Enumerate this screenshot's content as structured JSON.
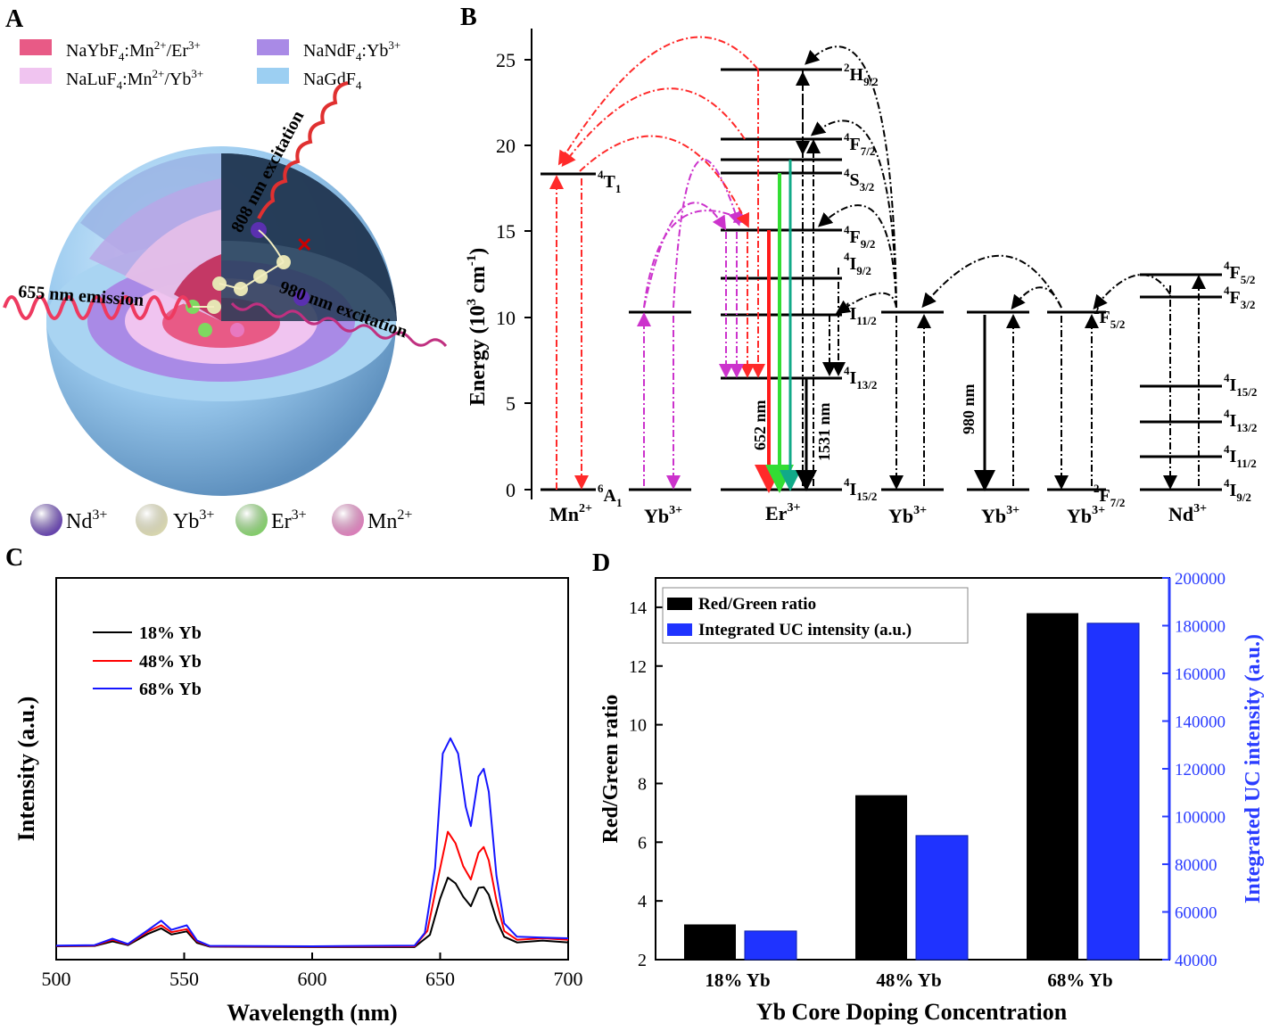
{
  "colors": {
    "shell_outer": "#8fc8ec",
    "shell_ndf": "#a88de0",
    "shell_lu": "#e8b8e8",
    "core": "#e8507a",
    "red": "#ff1a1a",
    "green": "#33dd33",
    "teal": "#11aa88",
    "magenta": "#cc33cc",
    "blue": "#3333ff"
  },
  "panel_a": {
    "letter": "A",
    "legend": [
      {
        "formula": "NaYbF",
        "sub": "4",
        "rest": ":Mn",
        "sup1": "2+",
        "mid": "/Er",
        "sup2": "3+",
        "color": "#e85a86"
      },
      {
        "formula": "NaLuF",
        "sub": "4",
        "rest": ":Mn",
        "sup1": "2+",
        "mid": "/Yb",
        "sup2": "3+",
        "color": "#f0c4f0"
      },
      {
        "formula": "NaNdF",
        "sub": "4",
        "rest": ":Yb",
        "sup1": "3+",
        "mid": "",
        "sup2": "",
        "color": "#a98ae6"
      },
      {
        "formula": "NaGdF",
        "sub": "4",
        "rest": "",
        "sup1": "",
        "mid": "",
        "sup2": "",
        "color": "#9ccff2"
      }
    ],
    "label_808": "808 nm excitation",
    "label_980": "980 nm excitation",
    "label_655": "655 nm emission",
    "ions": [
      {
        "name": "Nd",
        "sup": "3+",
        "color": "#5a30b0"
      },
      {
        "name": "Yb",
        "sup": "3+",
        "color": "#e6e4b4"
      },
      {
        "name": "Er",
        "sup": "3+",
        "color": "#7ed860"
      },
      {
        "name": "Mn",
        "sup": "2+",
        "color": "#e878c0"
      }
    ]
  },
  "panel_b": {
    "letter": "B",
    "y_label": "Energy (10",
    "y_label_sup": "3",
    "y_label_unit": " cm",
    "y_label_sup2": "-1",
    "y_label_end": ")",
    "y_ticks": [
      "0",
      "5",
      "10",
      "15",
      "20",
      "25"
    ],
    "levels": [
      {
        "base": "4",
        "sym": "T",
        "sub": "1"
      },
      {
        "base": "6",
        "sym": "A",
        "sub": "1"
      },
      {
        "base": "2",
        "sym": "H",
        "sub": "9/2"
      },
      {
        "base": "4",
        "sym": "F",
        "sub": "7/2"
      },
      {
        "base": "4",
        "sym": "S",
        "sub": "3/2"
      },
      {
        "base": "4",
        "sym": "F",
        "sub": "9/2"
      },
      {
        "base": "4",
        "sym": "I",
        "sub": "9/2"
      },
      {
        "base": "4",
        "sym": "I",
        "sub": "11/2"
      },
      {
        "base": "4",
        "sym": "I",
        "sub": "13/2"
      },
      {
        "base": "4",
        "sym": "I",
        "sub": "15/2"
      },
      {
        "base": "2",
        "sym": "F",
        "sub": "5/2"
      },
      {
        "base": "2",
        "sym": "F",
        "sub": "7/2"
      },
      {
        "base": "4",
        "sym": "F",
        "sub": "5/2"
      },
      {
        "base": "4",
        "sym": "F",
        "sub": "3/2"
      },
      {
        "base": "4",
        "sym": "I",
        "sub": "15/2"
      },
      {
        "base": "4",
        "sym": "I",
        "sub": "13/2"
      },
      {
        "base": "4",
        "sym": "I",
        "sub": "11/2"
      },
      {
        "base": "4",
        "sym": "I",
        "sub": "9/2"
      }
    ],
    "ions": [
      {
        "name": "Mn",
        "sup": "2+"
      },
      {
        "name": "Yb",
        "sup": "3+"
      },
      {
        "name": "Er",
        "sup": "3+"
      },
      {
        "name": "Yb",
        "sup": "3+"
      },
      {
        "name": "Yb",
        "sup": "3+"
      },
      {
        "name": "Yb",
        "sup": "3+"
      },
      {
        "name": "Nd",
        "sup": "3+"
      }
    ],
    "label_652": "652 nm",
    "label_1531": "1531 nm",
    "label_980": "980 nm"
  },
  "chart_data": [
    {
      "type": "line",
      "panel": "C",
      "xlabel": "Wavelength (nm)",
      "ylabel": "Intensity (a.u.)",
      "xlim": [
        500,
        700
      ],
      "ylim": [
        0,
        100
      ],
      "x_ticks": [
        "500",
        "550",
        "600",
        "650",
        "700"
      ],
      "legend": [
        "18% Yb",
        "48% Yb",
        "68% Yb"
      ],
      "series": [
        {
          "name": "18% Yb",
          "color": "#000000",
          "x": [
            500,
            515,
            522,
            528,
            536,
            541,
            545,
            551,
            555,
            560,
            600,
            640,
            646,
            650,
            653,
            656,
            659,
            662,
            665,
            667,
            669,
            672,
            675,
            680,
            690,
            700
          ],
          "y": [
            3.5,
            3.6,
            4.8,
            3.8,
            6.8,
            8.2,
            6.6,
            7.4,
            4.4,
            3.4,
            3.3,
            3.3,
            6.5,
            16,
            21.5,
            20,
            16.5,
            14,
            18.8,
            19,
            17,
            10.5,
            6,
            4.5,
            5,
            4.5
          ]
        },
        {
          "name": "48% Yb",
          "color": "#ff0000",
          "x": [
            500,
            515,
            522,
            528,
            536,
            541,
            545,
            551,
            555,
            560,
            600,
            640,
            645,
            650,
            653,
            656,
            659,
            662,
            665,
            667,
            669,
            672,
            675,
            680,
            690,
            700
          ],
          "y": [
            3.6,
            3.7,
            5.2,
            4,
            7.4,
            9,
            7.2,
            8,
            4.8,
            3.5,
            3.4,
            3.5,
            7.5,
            24,
            33.5,
            30.5,
            24.5,
            21,
            28,
            29.5,
            26,
            15.5,
            7.5,
            5.2,
            5.6,
            5.2
          ]
        },
        {
          "name": "68% Yb",
          "color": "#1515ff",
          "x": [
            500,
            515,
            522,
            528,
            536,
            541,
            545,
            551,
            555,
            560,
            600,
            640,
            644,
            648,
            651,
            654,
            657,
            660,
            662,
            665,
            667,
            669,
            672,
            675,
            680,
            690,
            700
          ],
          "y": [
            3.7,
            3.8,
            5.5,
            4.1,
            7.8,
            10.2,
            7.8,
            9,
            5,
            3.6,
            3.5,
            3.7,
            7,
            24,
            54,
            58,
            54,
            40,
            35,
            48,
            50,
            44,
            22,
            9.5,
            6,
            5.8,
            5.6
          ]
        }
      ]
    },
    {
      "type": "bar",
      "panel": "D",
      "title": "",
      "xlabel": "Yb Core Doping Concentration",
      "ylabel": "Red/Green ratio",
      "y2label": "Integrated UC intensity (a.u.)",
      "categories": [
        "18% Yb",
        "48% Yb",
        "68% Yb"
      ],
      "ylim": [
        2,
        15
      ],
      "y_ticks": [
        "2",
        "4",
        "6",
        "8",
        "10",
        "12",
        "14"
      ],
      "y2lim": [
        40000,
        200000
      ],
      "y2_ticks": [
        "40000",
        "60000",
        "80000",
        "100000",
        "120000",
        "140000",
        "160000",
        "180000",
        "200000"
      ],
      "series": [
        {
          "name": "Red/Green ratio",
          "axis": "left",
          "color": "#000000",
          "values": [
            3.2,
            7.6,
            13.8
          ]
        },
        {
          "name": "Integrated UC intensity (a.u.)",
          "axis": "right",
          "color": "#1f33ff",
          "values": [
            52000,
            92000,
            181000
          ]
        }
      ]
    }
  ]
}
